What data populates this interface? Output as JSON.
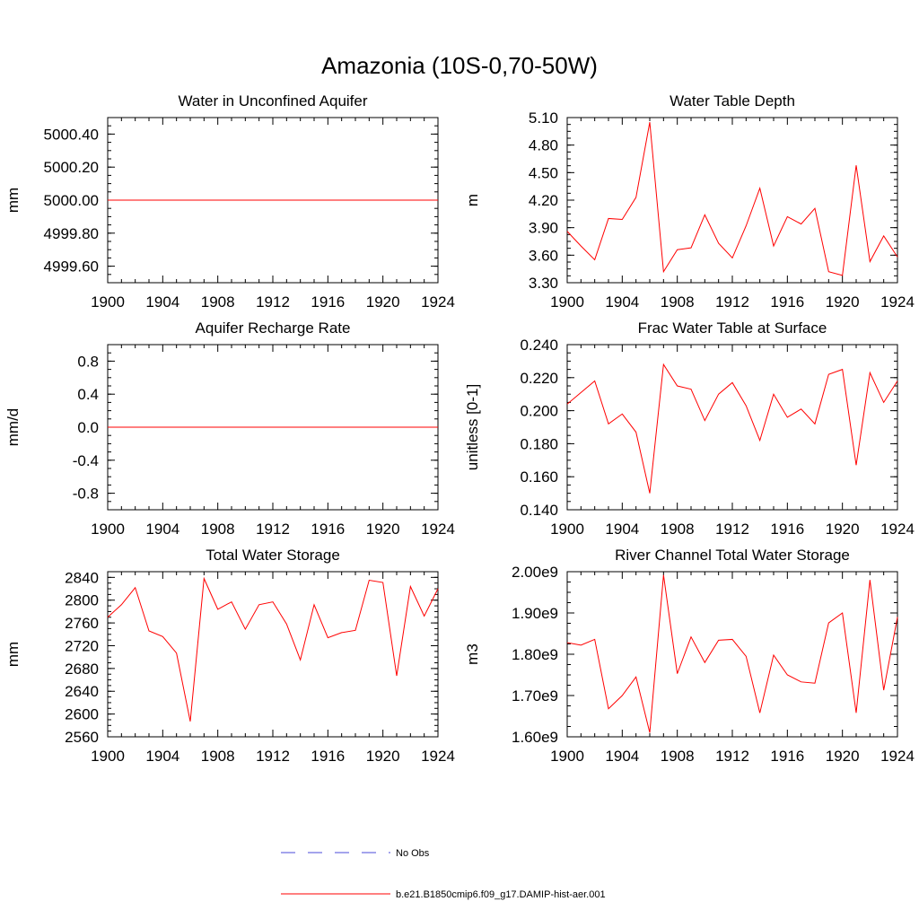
{
  "title": "Amazonia (10S-0,70-50W)",
  "colors": {
    "model_line": "#ff0000",
    "obs_line": "#4a4ad8",
    "axis": "#000000"
  },
  "legend": {
    "placement": "bottom-center",
    "entries": [
      {
        "label": "No Obs",
        "style": "dashed",
        "color": "#4a4ad8"
      },
      {
        "label": "b.e21.B1850cmip6.f09_g17.DAMIP-hist-aer.001",
        "style": "solid",
        "color": "#ff0000"
      }
    ]
  },
  "chart_data": [
    {
      "type": "line",
      "title": "Water in Unconfined Aquifer",
      "xlabel": "",
      "ylabel": "mm",
      "xlim": [
        1900,
        1924
      ],
      "ylim": [
        4999.5,
        5000.5
      ],
      "xticks": [
        "1900",
        "1904",
        "1908",
        "1912",
        "1916",
        "1920",
        "1924"
      ],
      "yticks": [
        {
          "value": 4999.6,
          "label": "4999.60"
        },
        {
          "value": 4999.8,
          "label": "4999.80"
        },
        {
          "value": 5000.0,
          "label": "5000.00"
        },
        {
          "value": 5000.2,
          "label": "5000.20"
        },
        {
          "value": 5000.4,
          "label": "5000.40"
        }
      ],
      "x": [
        1900,
        1901,
        1902,
        1903,
        1904,
        1905,
        1906,
        1907,
        1908,
        1909,
        1910,
        1911,
        1912,
        1913,
        1914,
        1915,
        1916,
        1917,
        1918,
        1919,
        1920,
        1921,
        1922,
        1923,
        1924
      ],
      "values": [
        5000,
        5000,
        5000,
        5000,
        5000,
        5000,
        5000,
        5000,
        5000,
        5000,
        5000,
        5000,
        5000,
        5000,
        5000,
        5000,
        5000,
        5000,
        5000,
        5000,
        5000,
        5000,
        5000,
        5000,
        5000
      ]
    },
    {
      "type": "line",
      "title": "Water Table Depth",
      "xlabel": "",
      "ylabel": "m",
      "xlim": [
        1900,
        1924
      ],
      "ylim": [
        3.3,
        5.1
      ],
      "xticks": [
        "1900",
        "1904",
        "1908",
        "1912",
        "1916",
        "1920",
        "1924"
      ],
      "yticks": [
        {
          "value": 3.3,
          "label": "3.30"
        },
        {
          "value": 3.6,
          "label": "3.60"
        },
        {
          "value": 3.9,
          "label": "3.90"
        },
        {
          "value": 4.2,
          "label": "4.20"
        },
        {
          "value": 4.5,
          "label": "4.50"
        },
        {
          "value": 4.8,
          "label": "4.80"
        },
        {
          "value": 5.1,
          "label": "5.10"
        }
      ],
      "x": [
        1900,
        1901,
        1902,
        1903,
        1904,
        1905,
        1906,
        1907,
        1908,
        1909,
        1910,
        1911,
        1912,
        1913,
        1914,
        1915,
        1916,
        1917,
        1918,
        1919,
        1920,
        1921,
        1922,
        1923,
        1924
      ],
      "values": [
        3.86,
        3.7,
        3.55,
        4.0,
        3.99,
        4.23,
        5.05,
        3.42,
        3.66,
        3.68,
        4.04,
        3.73,
        3.57,
        3.92,
        4.33,
        3.7,
        4.02,
        3.94,
        4.11,
        3.42,
        3.38,
        4.58,
        3.53,
        3.81,
        3.58
      ]
    },
    {
      "type": "line",
      "title": "Aquifer Recharge Rate",
      "xlabel": "",
      "ylabel": "mm/d",
      "xlim": [
        1900,
        1924
      ],
      "ylim": [
        -1.0,
        1.0
      ],
      "xticks": [
        "1900",
        "1904",
        "1908",
        "1912",
        "1916",
        "1920",
        "1924"
      ],
      "yticks": [
        {
          "value": -0.8,
          "label": "-0.8"
        },
        {
          "value": -0.4,
          "label": "-0.4"
        },
        {
          "value": 0.0,
          "label": "0.0"
        },
        {
          "value": 0.4,
          "label": "0.4"
        },
        {
          "value": 0.8,
          "label": "0.8"
        }
      ],
      "x": [
        1900,
        1901,
        1902,
        1903,
        1904,
        1905,
        1906,
        1907,
        1908,
        1909,
        1910,
        1911,
        1912,
        1913,
        1914,
        1915,
        1916,
        1917,
        1918,
        1919,
        1920,
        1921,
        1922,
        1923,
        1924
      ],
      "values": [
        0,
        0,
        0,
        0,
        0,
        0,
        0,
        0,
        0,
        0,
        0,
        0,
        0,
        0,
        0,
        0,
        0,
        0,
        0,
        0,
        0,
        0,
        0,
        0,
        0
      ]
    },
    {
      "type": "line",
      "title": "Frac Water Table at Surface",
      "xlabel": "",
      "ylabel": "unitless [0-1]",
      "xlim": [
        1900,
        1924
      ],
      "ylim": [
        0.14,
        0.24
      ],
      "xticks": [
        "1900",
        "1904",
        "1908",
        "1912",
        "1916",
        "1920",
        "1924"
      ],
      "yticks": [
        {
          "value": 0.14,
          "label": "0.140"
        },
        {
          "value": 0.16,
          "label": "0.160"
        },
        {
          "value": 0.18,
          "label": "0.180"
        },
        {
          "value": 0.2,
          "label": "0.200"
        },
        {
          "value": 0.22,
          "label": "0.220"
        },
        {
          "value": 0.24,
          "label": "0.240"
        }
      ],
      "x": [
        1900,
        1901,
        1902,
        1903,
        1904,
        1905,
        1906,
        1907,
        1908,
        1909,
        1910,
        1911,
        1912,
        1913,
        1914,
        1915,
        1916,
        1917,
        1918,
        1919,
        1920,
        1921,
        1922,
        1923,
        1924
      ],
      "values": [
        0.204,
        0.211,
        0.218,
        0.192,
        0.198,
        0.187,
        0.15,
        0.228,
        0.215,
        0.213,
        0.194,
        0.21,
        0.217,
        0.203,
        0.182,
        0.21,
        0.196,
        0.201,
        0.192,
        0.222,
        0.225,
        0.167,
        0.223,
        0.205,
        0.218
      ]
    },
    {
      "type": "line",
      "title": "Total Water Storage",
      "xlabel": "",
      "ylabel": "mm",
      "xlim": [
        1900,
        1924
      ],
      "ylim": [
        2560,
        2850
      ],
      "xticks": [
        "1900",
        "1904",
        "1908",
        "1912",
        "1916",
        "1920",
        "1924"
      ],
      "yticks": [
        {
          "value": 2560,
          "label": "2560"
        },
        {
          "value": 2600,
          "label": "2600"
        },
        {
          "value": 2640,
          "label": "2640"
        },
        {
          "value": 2680,
          "label": "2680"
        },
        {
          "value": 2720,
          "label": "2720"
        },
        {
          "value": 2760,
          "label": "2760"
        },
        {
          "value": 2800,
          "label": "2800"
        },
        {
          "value": 2840,
          "label": "2840"
        }
      ],
      "x": [
        1900,
        1901,
        1902,
        1903,
        1904,
        1905,
        1906,
        1907,
        1908,
        1909,
        1910,
        1911,
        1912,
        1913,
        1914,
        1915,
        1916,
        1917,
        1918,
        1919,
        1920,
        1921,
        1922,
        1923,
        1924
      ],
      "values": [
        2770,
        2792,
        2822,
        2746,
        2736,
        2707,
        2587,
        2838,
        2784,
        2797,
        2749,
        2792,
        2797,
        2758,
        2695,
        2792,
        2734,
        2743,
        2747,
        2835,
        2831,
        2667,
        2824,
        2772,
        2820
      ]
    },
    {
      "type": "line",
      "title": "River Channel Total Water Storage",
      "xlabel": "",
      "ylabel": "m3",
      "xlim": [
        1900,
        1924
      ],
      "ylim": [
        1600000000.0,
        2000000000.0
      ],
      "xticks": [
        "1900",
        "1904",
        "1908",
        "1912",
        "1916",
        "1920",
        "1924"
      ],
      "yticks": [
        {
          "value": 1600000000.0,
          "label": "1.60e9"
        },
        {
          "value": 1700000000.0,
          "label": "1.70e9"
        },
        {
          "value": 1800000000.0,
          "label": "1.80e9"
        },
        {
          "value": 1900000000.0,
          "label": "1.90e9"
        },
        {
          "value": 2000000000.0,
          "label": "2.00e9"
        }
      ],
      "x": [
        1900,
        1901,
        1902,
        1903,
        1904,
        1905,
        1906,
        1907,
        1908,
        1909,
        1910,
        1911,
        1912,
        1913,
        1914,
        1915,
        1916,
        1917,
        1918,
        1919,
        1920,
        1921,
        1922,
        1923,
        1924
      ],
      "values": [
        1828000000.0,
        1822000000.0,
        1836000000.0,
        1668000000.0,
        1700000000.0,
        1745000000.0,
        1610000000.0,
        1992000000.0,
        1753000000.0,
        1842000000.0,
        1780000000.0,
        1834000000.0,
        1836000000.0,
        1795000000.0,
        1658000000.0,
        1798000000.0,
        1750000000.0,
        1733000000.0,
        1730000000.0,
        1876000000.0,
        1900000000.0,
        1658000000.0,
        1980000000.0,
        1713000000.0,
        1890000000.0
      ]
    }
  ]
}
